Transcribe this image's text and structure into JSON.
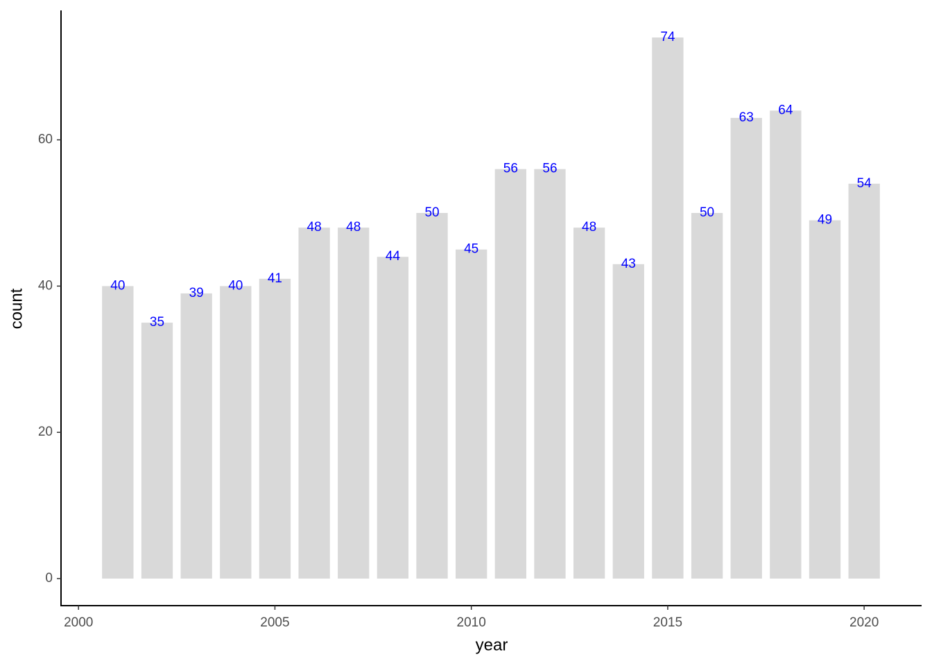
{
  "chart_data": {
    "type": "bar",
    "x": [
      2001,
      2002,
      2003,
      2004,
      2005,
      2006,
      2007,
      2008,
      2009,
      2010,
      2011,
      2012,
      2013,
      2014,
      2015,
      2016,
      2017,
      2018,
      2019,
      2020
    ],
    "values": [
      40,
      35,
      39,
      40,
      41,
      48,
      48,
      44,
      50,
      45,
      56,
      56,
      48,
      43,
      74,
      50,
      63,
      64,
      49,
      54
    ],
    "color": "#d9d9d9",
    "label_color": "#0000ff",
    "xlabel": "year",
    "ylabel": "count",
    "xlim": [
      1999.555,
      2021.445
    ],
    "xticks": [
      2000,
      2005,
      2010,
      2015,
      2020
    ],
    "ylim": [
      -3.7,
      77.7
    ],
    "yticks": [
      0,
      20,
      40,
      60
    ],
    "grid": false
  }
}
